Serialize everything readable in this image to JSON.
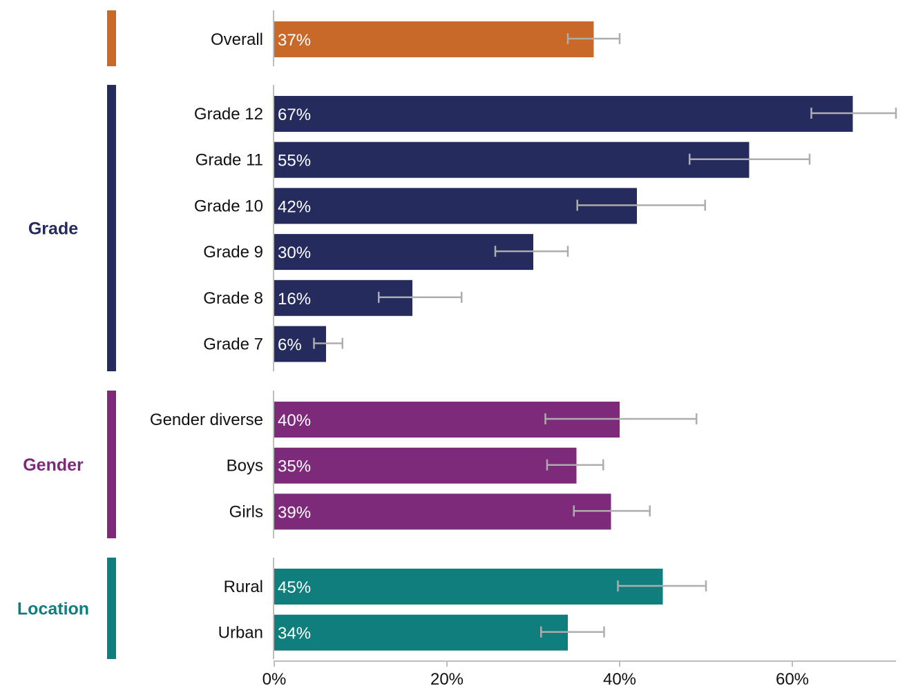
{
  "chart_data": {
    "type": "bar",
    "orientation": "horizontal",
    "grid": false,
    "xlim": [
      0,
      72
    ],
    "x_ticks": [
      0,
      20,
      40,
      60
    ],
    "x_tick_labels": [
      "0%",
      "20%",
      "40%",
      "60%"
    ],
    "groups": [
      {
        "name": "",
        "color": "#C8692A",
        "items": [
          {
            "label": "Overall",
            "value": 37,
            "value_label": "37%",
            "ci": [
              34,
              40
            ]
          }
        ]
      },
      {
        "name": "Grade",
        "color": "#252B5C",
        "items": [
          {
            "label": "Grade 12",
            "value": 67,
            "value_label": "67%",
            "ci": [
              62.2,
              72
            ]
          },
          {
            "label": "Grade 11",
            "value": 55,
            "value_label": "55%",
            "ci": [
              48.1,
              62
            ]
          },
          {
            "label": "Grade 10",
            "value": 42,
            "value_label": "42%",
            "ci": [
              35.1,
              49.9
            ]
          },
          {
            "label": "Grade 9",
            "value": 30,
            "value_label": "30%",
            "ci": [
              25.6,
              34
            ]
          },
          {
            "label": "Grade 8",
            "value": 16,
            "value_label": "16%",
            "ci": [
              12.1,
              21.7
            ]
          },
          {
            "label": "Grade 7",
            "value": 6,
            "value_label": "6%",
            "ci": [
              4.6,
              7.9
            ]
          }
        ]
      },
      {
        "name": "Gender",
        "color": "#7D2A7A",
        "items": [
          {
            "label": "Gender diverse",
            "value": 40,
            "value_label": "40%",
            "ci": [
              31.4,
              48.9
            ]
          },
          {
            "label": "Boys",
            "value": 35,
            "value_label": "35%",
            "ci": [
              31.6,
              38.1
            ]
          },
          {
            "label": "Girls",
            "value": 39,
            "value_label": "39%",
            "ci": [
              34.7,
              43.5
            ]
          }
        ]
      },
      {
        "name": "Location",
        "color": "#107E7C",
        "items": [
          {
            "label": "Rural",
            "value": 45,
            "value_label": "45%",
            "ci": [
              39.8,
              50
            ]
          },
          {
            "label": "Urban",
            "value": 34,
            "value_label": "34%",
            "ci": [
              30.9,
              38.2
            ]
          }
        ]
      }
    ]
  }
}
